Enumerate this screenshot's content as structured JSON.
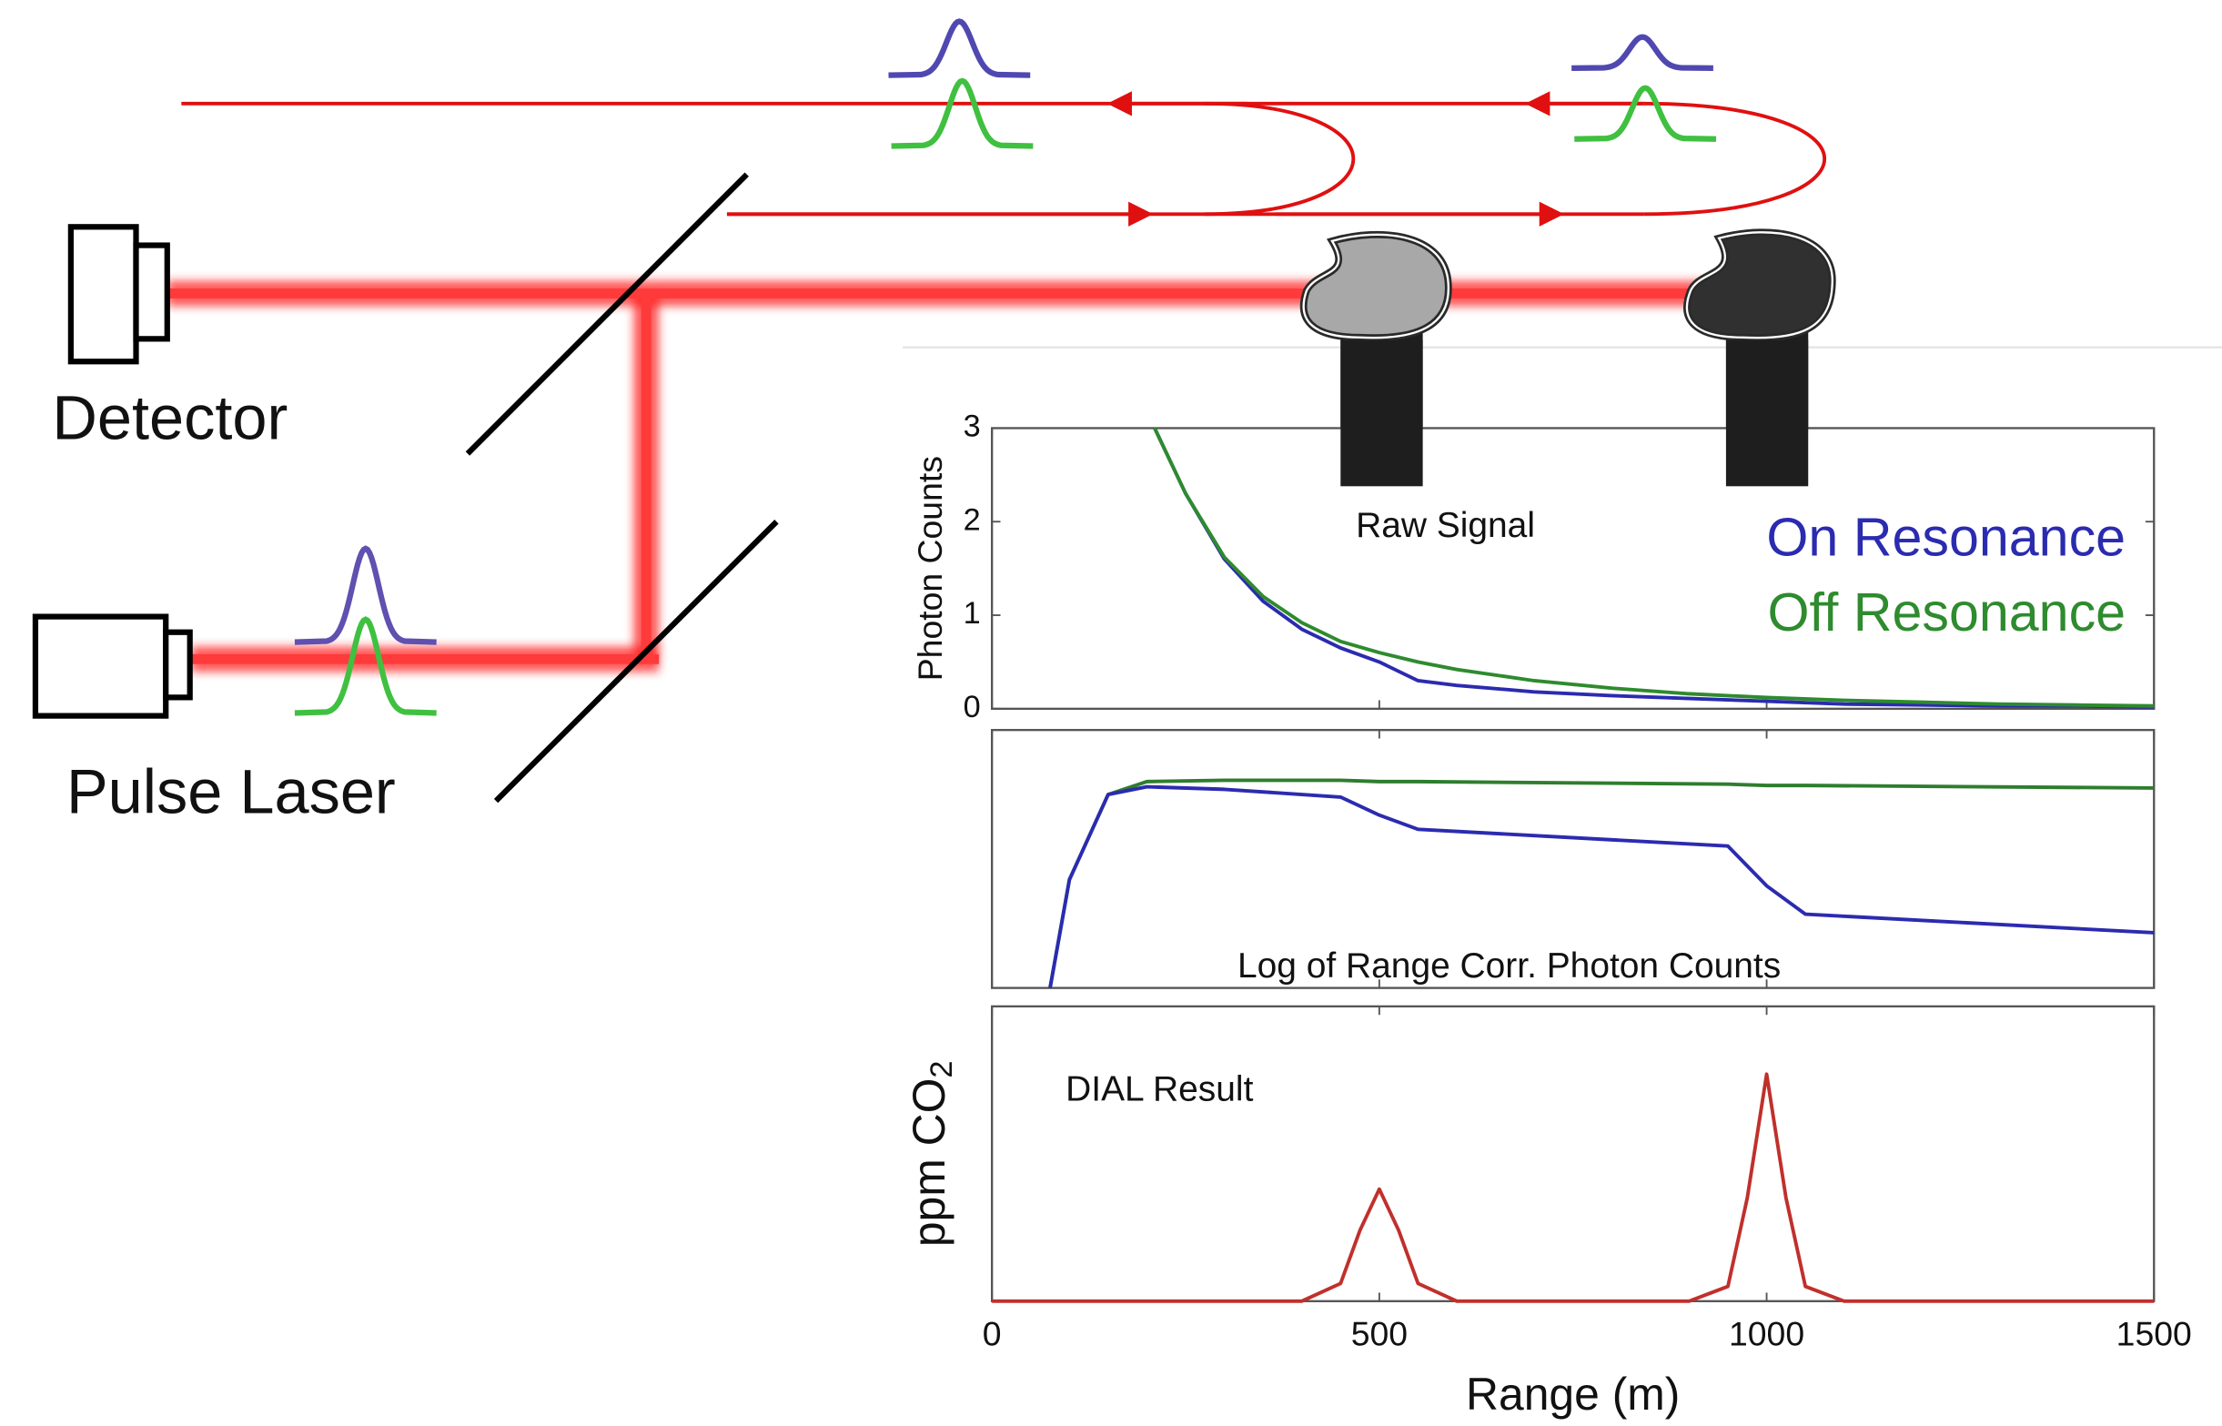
{
  "diagram": {
    "detector_label": "Detector",
    "laser_label": "Pulse Laser"
  },
  "chart_data": [
    {
      "type": "line",
      "title": "Raw Signal",
      "ylabel": "Photon Counts",
      "xlim": [
        0,
        1500
      ],
      "ylim": [
        0,
        3
      ],
      "yticks": [
        0,
        1,
        2,
        3
      ],
      "x": [
        210,
        250,
        300,
        350,
        400,
        450,
        500,
        550,
        600,
        700,
        800,
        900,
        1000,
        1100,
        1200,
        1300,
        1400,
        1500
      ],
      "series": [
        {
          "name": "On Resonance",
          "color": "#2b2bb0",
          "values": [
            3,
            2.3,
            1.6,
            1.15,
            0.85,
            0.65,
            0.5,
            0.3,
            0.25,
            0.18,
            0.14,
            0.11,
            0.08,
            0.05,
            0.04,
            0.03,
            0.03,
            0.02
          ]
        },
        {
          "name": "Off Resonance",
          "color": "#2e8b2e",
          "values": [
            3,
            2.3,
            1.62,
            1.2,
            0.92,
            0.72,
            0.6,
            0.5,
            0.42,
            0.3,
            0.22,
            0.16,
            0.12,
            0.09,
            0.07,
            0.05,
            0.04,
            0.03
          ]
        }
      ]
    },
    {
      "type": "line",
      "title": "Log of Range Corr. Photon Counts",
      "xlim": [
        0,
        1500
      ],
      "ylim": [
        0,
        10
      ],
      "x": [
        75,
        100,
        150,
        200,
        300,
        450,
        500,
        550,
        950,
        1000,
        1050,
        1500
      ],
      "series": [
        {
          "color": "#2e7d2e",
          "values": [
            0,
            4.2,
            7.5,
            8.0,
            8.05,
            8.05,
            8.0,
            8.0,
            7.9,
            7.85,
            7.85,
            7.75
          ]
        },
        {
          "color": "#2b2bb0",
          "values": [
            0,
            4.2,
            7.5,
            7.8,
            7.7,
            7.4,
            6.7,
            6.15,
            5.5,
            3.96,
            2.86,
            2.14
          ]
        }
      ]
    },
    {
      "type": "line",
      "title": "DIAL Result",
      "ylabel": "ppm CO",
      "ylabel_sub": "2",
      "xlabel": "Range (m)",
      "xlim": [
        0,
        1500
      ],
      "ylim": [
        0,
        10
      ],
      "xticks": [
        0,
        500,
        1000,
        1500
      ],
      "x": [
        0,
        400,
        450,
        475,
        500,
        525,
        550,
        600,
        900,
        950,
        975,
        1000,
        1025,
        1050,
        1100,
        1500
      ],
      "series": [
        {
          "color": "#c0302c",
          "values": [
            0,
            0,
            0.6,
            2.4,
            3.8,
            2.4,
            0.6,
            0,
            0,
            0.5,
            3.5,
            7.7,
            3.5,
            0.5,
            0,
            0
          ]
        }
      ]
    }
  ]
}
